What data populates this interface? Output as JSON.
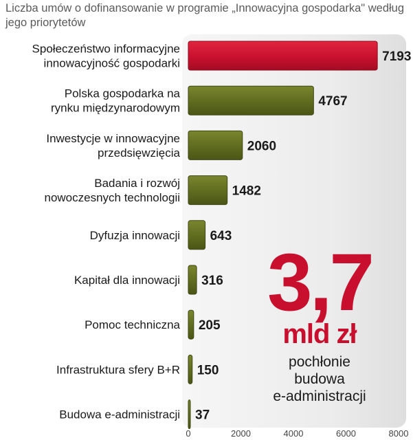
{
  "title": "Liczba umów o dofinansowanie w programie „Innowacyjna gospodarka\" według jego priorytetów",
  "callout": {
    "big_number": "3,7",
    "unit": "mld zł",
    "description_lines": [
      "pochłonie",
      "budowa",
      "e-administracji"
    ]
  },
  "colors": {
    "highlight": "#c8102e",
    "bar": "#5f6b1f",
    "panel": "#ececec"
  },
  "chart_data": {
    "type": "bar",
    "orientation": "horizontal",
    "title": "Liczba umów o dofinansowanie w programie „Innowacyjna gospodarka\" według jego priorytetów",
    "categories": [
      [
        "Społeczeństwo informacyjne",
        "innowacyjność gospodarki"
      ],
      [
        "Polska gospodarka na",
        "rynku międzynarodowym"
      ],
      [
        "Inwestycje w innowacyjne",
        "przedsięwzięcia"
      ],
      [
        "Badania i rozwój",
        "nowoczesnych technologii"
      ],
      [
        "Dyfuzja innowacji"
      ],
      [
        "Kapitał dla innowacji"
      ],
      [
        "Pomoc techniczna"
      ],
      [
        "Infrastruktura sfery B+R"
      ],
      [
        "Budowa e-administracji"
      ]
    ],
    "values": [
      7193,
      4767,
      2060,
      1482,
      643,
      316,
      205,
      150,
      37
    ],
    "value_labels": [
      "7193",
      "4767",
      "2060",
      "1482",
      "643",
      "316",
      "205",
      "150",
      "37"
    ],
    "highlight_index": 0,
    "xlim": [
      0,
      8000
    ],
    "xticks": [
      0,
      2000,
      4000,
      6000,
      8000
    ],
    "xtick_labels": [
      "0",
      "2000",
      "4000",
      "6000",
      "8000"
    ],
    "xlabel": "",
    "ylabel": "",
    "grid": false,
    "legend": "none"
  }
}
